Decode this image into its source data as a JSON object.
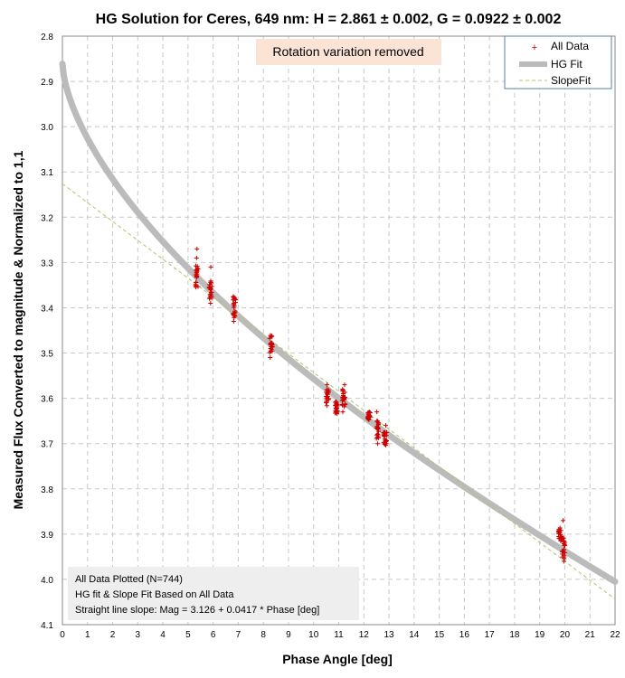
{
  "chart_data": {
    "type": "scatter",
    "title": "HG Solution for Ceres, 649 nm:  H = 2.861 ± 0.002, G = 0.0922 ± 0.002",
    "xlabel": "Phase Angle [deg]",
    "ylabel": "Measured Flux Converted to magnitude & Normalized to 1,1",
    "xlim": [
      0,
      22
    ],
    "ylim": [
      2.8,
      4.1
    ],
    "y_inverted": true,
    "grid": true,
    "x_ticks": [
      0,
      1,
      2,
      3,
      4,
      5,
      6,
      7,
      8,
      9,
      10,
      11,
      12,
      13,
      14,
      15,
      16,
      17,
      18,
      19,
      20,
      21,
      22
    ],
    "y_ticks": [
      2.8,
      2.9,
      3.0,
      3.1,
      3.2,
      3.3,
      3.4,
      3.5,
      3.6,
      3.7,
      3.8,
      3.9,
      4.0,
      4.1
    ],
    "banner": "Rotation variation removed",
    "legend": {
      "placement": "top-right",
      "entries": [
        "All Data",
        "HG Fit",
        "SlopeFit"
      ]
    },
    "notes": [
      "All Data Plotted (N=744)",
      "HG fit & Slope Fit Based on All Data",
      "Straight line slope:  Mag = 3.126 + 0.0417 * Phase [deg]"
    ],
    "hg_fit": {
      "H": 2.861,
      "G": 0.0922,
      "x_range": [
        0,
        22
      ]
    },
    "slope_fit": {
      "intercept": 3.126,
      "slope": 0.0417,
      "x_range": [
        0,
        22
      ]
    },
    "series": [
      {
        "name": "All Data",
        "color": "#cc0000",
        "clusters": [
          {
            "x": 5.35,
            "y_center": 3.33,
            "y_spread": 0.025,
            "outliers": [
              3.27,
              3.29
            ]
          },
          {
            "x": 5.9,
            "y_center": 3.36,
            "y_spread": 0.02,
            "outliers": [
              3.31,
              3.39
            ]
          },
          {
            "x": 6.85,
            "y_center": 3.4,
            "y_spread": 0.025,
            "outliers": [
              3.43
            ]
          },
          {
            "x": 8.3,
            "y_center": 3.48,
            "y_spread": 0.02,
            "outliers": [
              3.51
            ]
          },
          {
            "x": 10.55,
            "y_center": 3.6,
            "y_spread": 0.02,
            "outliers": [
              3.57
            ]
          },
          {
            "x": 10.9,
            "y_center": 3.62,
            "y_spread": 0.015,
            "outliers": []
          },
          {
            "x": 11.2,
            "y_center": 3.6,
            "y_spread": 0.02,
            "outliers": [
              3.57,
              3.63
            ]
          },
          {
            "x": 12.2,
            "y_center": 3.64,
            "y_spread": 0.01,
            "outliers": []
          },
          {
            "x": 12.55,
            "y_center": 3.67,
            "y_spread": 0.02,
            "outliers": [
              3.63,
              3.7
            ]
          },
          {
            "x": 12.85,
            "y_center": 3.69,
            "y_spread": 0.015,
            "outliers": [
              3.66,
              3.7
            ]
          },
          {
            "x": 19.8,
            "y_center": 3.9,
            "y_spread": 0.015,
            "outliers": []
          },
          {
            "x": 19.95,
            "y_center": 3.93,
            "y_spread": 0.025,
            "outliers": [
              3.87,
              3.96
            ]
          }
        ]
      }
    ],
    "colors": {
      "hg_fit": "#bbbbbb",
      "slope_fit": "#b5c46a",
      "grid": "#c8c8c8",
      "banner_bg": "#fbe4d5",
      "notes_bg": "#eeeeee",
      "legend_border": "#5b7fa6"
    }
  }
}
